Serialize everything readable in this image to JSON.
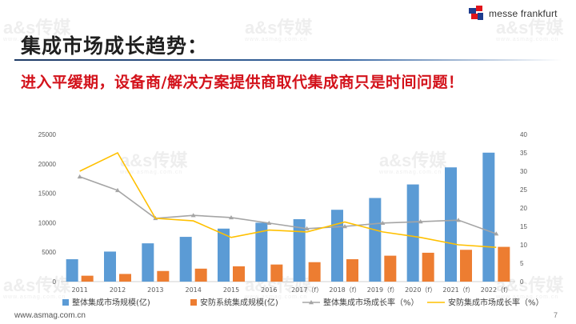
{
  "header": {
    "brand": "messe frankfurt",
    "title": "集成市场成长趋势：",
    "subtitle": "进入平缓期，设备商/解决方案提供商取代集成商只是时间问题！"
  },
  "watermark": {
    "text": "a&s传媒",
    "sub": "www.asmag.com.cn"
  },
  "footer": {
    "url": "www.asmag.com.cn",
    "page": "7"
  },
  "colors": {
    "blue": "#5b9bd5",
    "orange": "#ed7d31",
    "gray": "#a5a5a5",
    "yellow": "#ffc000",
    "title_red": "#d3121b"
  },
  "chart_data": {
    "type": "bar",
    "categories": [
      "2011",
      "2012",
      "2013",
      "2014",
      "2015",
      "2016",
      "2017（f）",
      "2018（f）",
      "2019（f）",
      "2020（f）",
      "2021（f）",
      "2022（f）"
    ],
    "series": [
      {
        "name": "整体集成市场规模(亿)",
        "type": "bar",
        "axis": "left",
        "values": [
          3800,
          5100,
          6500,
          7600,
          9000,
          10000,
          10600,
          12200,
          14200,
          16500,
          19400,
          21900
        ]
      },
      {
        "name": "安防系统集成规模(亿)",
        "type": "bar",
        "axis": "left",
        "values": [
          1000,
          1300,
          1800,
          2200,
          2600,
          2900,
          3300,
          3800,
          4400,
          4900,
          5400,
          5900
        ]
      },
      {
        "name": "整体集成市场成长率（%）",
        "type": "line",
        "axis": "right",
        "values": [
          28.5,
          24.8,
          17.2,
          18,
          17.4,
          15.9,
          14.4,
          15,
          15.9,
          16.3,
          16.7,
          13
        ]
      },
      {
        "name": "安防集成市场成长率（%）",
        "type": "line",
        "axis": "right",
        "values": [
          30,
          35,
          17.2,
          16.5,
          12,
          14,
          13.5,
          16.2,
          13.5,
          12,
          10,
          9.3
        ]
      }
    ],
    "y_left": {
      "min": 0,
      "max": 25000,
      "ticks": [
        "0",
        "5000",
        "10000",
        "15000",
        "20000",
        "25000"
      ]
    },
    "y_right": {
      "min": 0,
      "max": 40,
      "ticks": [
        "0",
        "5",
        "10",
        "15",
        "20",
        "25",
        "30",
        "35",
        "40"
      ]
    },
    "legend_position": "bottom",
    "grid": false
  }
}
